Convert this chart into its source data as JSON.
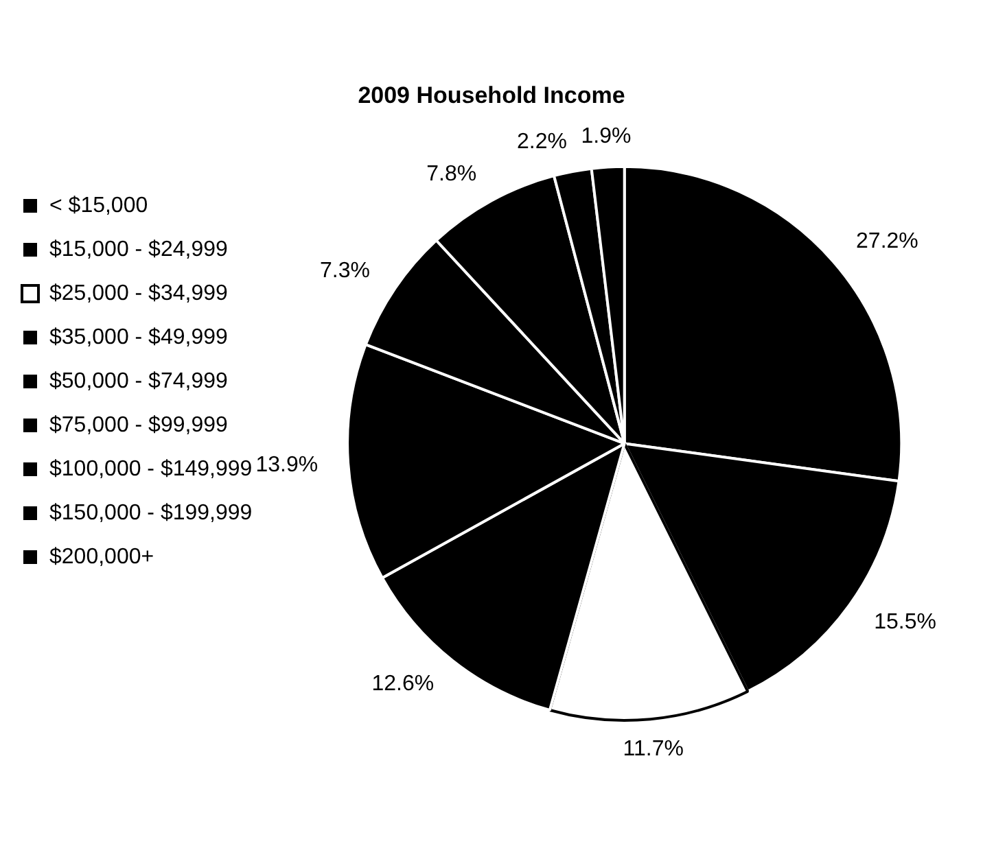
{
  "chart_data": {
    "type": "pie",
    "title": "2009 Household Income",
    "categories": [
      "< $15,000",
      "$15,000 - $24,999",
      "$25,000 - $34,999",
      "$35,000 - $49,999",
      "$50,000 - $74,999",
      "$75,000 - $99,999",
      "$100,000 - $149,999",
      "$150,000 - $199,999",
      "$200,000+"
    ],
    "values": [
      27.2,
      15.5,
      11.7,
      12.6,
      13.9,
      7.3,
      7.8,
      2.2,
      1.9
    ],
    "value_labels": [
      "27.2%",
      "15.5%",
      "11.7%",
      "12.6%",
      "13.9%",
      "7.3%",
      "7.8%",
      "2.2%",
      "1.9%"
    ],
    "colors": [
      "#000000",
      "#000000",
      "#ffffff",
      "#000000",
      "#000000",
      "#000000",
      "#000000",
      "#000000",
      "#000000"
    ],
    "legend": "left"
  }
}
